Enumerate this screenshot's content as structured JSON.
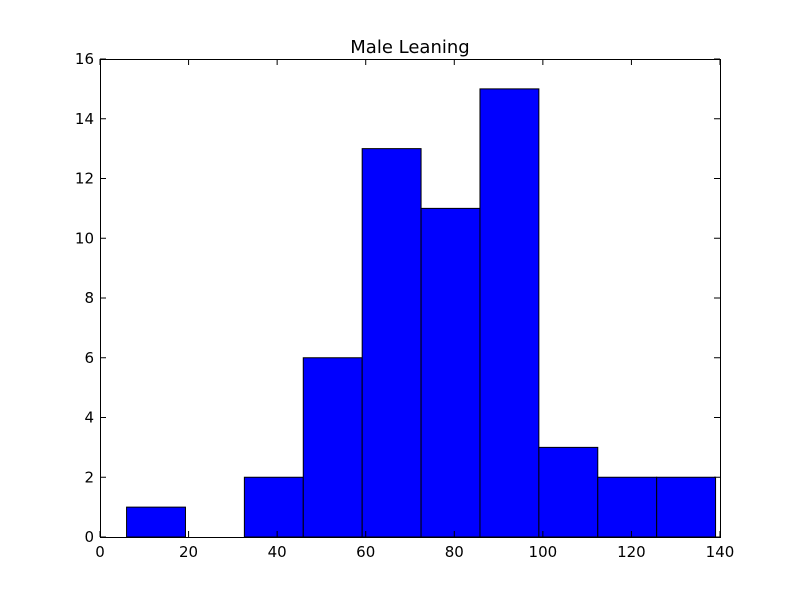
{
  "chart_data": {
    "type": "bar",
    "title": "Male Leaning",
    "xlabel": "",
    "ylabel": "",
    "xlim": [
      0,
      140
    ],
    "ylim": [
      0,
      16
    ],
    "x_ticks": [
      0,
      20,
      40,
      60,
      80,
      100,
      120,
      140
    ],
    "y_ticks": [
      0,
      2,
      4,
      6,
      8,
      10,
      12,
      14,
      16
    ],
    "bin_edges": [
      6.0,
      19.3,
      32.6,
      45.9,
      59.2,
      72.5,
      85.8,
      99.1,
      112.4,
      125.7,
      139.0
    ],
    "values": [
      1,
      0,
      2,
      6,
      13,
      11,
      15,
      3,
      2,
      2
    ],
    "bar_color": "#0000ff",
    "grid": false
  }
}
